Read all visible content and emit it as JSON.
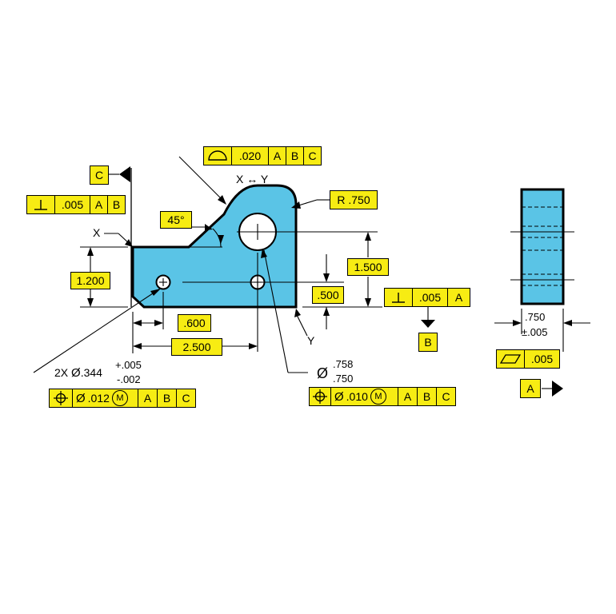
{
  "datum_labels": {
    "A": "A",
    "B": "B",
    "C": "C",
    "X": "X",
    "Y": "Y"
  },
  "fcf_profile": {
    "tolerance": ".020",
    "refs": [
      "A",
      "B",
      "C"
    ]
  },
  "fcf_perp_top": {
    "tolerance": ".005",
    "refs": [
      "A",
      "B"
    ]
  },
  "fcf_perp_right": {
    "tolerance": ".005",
    "refs": [
      "A"
    ]
  },
  "fcf_pos_left": {
    "diameter": "Ø",
    "tolerance": ".012",
    "modifier": "M",
    "refs": [
      "A",
      "B",
      "C"
    ]
  },
  "fcf_pos_right": {
    "diameter": "Ø",
    "tolerance": ".010",
    "modifier": "M",
    "refs": [
      "A",
      "B",
      "C"
    ]
  },
  "fcf_flat": {
    "tolerance": ".005"
  },
  "between": {
    "from": "X",
    "arrow": "↔",
    "to": "Y"
  },
  "dims": {
    "angle": "45°",
    "radius": "R .750",
    "height_left": "1.200",
    "height_right": "1.500",
    "offset_small": ".500",
    "hole_x1": ".600",
    "hole_x2": "2.500",
    "thickness": ".750",
    "thickness_tol": "±.005"
  },
  "hole_callout": {
    "count": "2X",
    "diameter_symbol": "Ø",
    "size": ".344",
    "tol_plus": "+.005",
    "tol_minus": "-.002"
  },
  "bore_callout": {
    "diameter_symbol": "Ø",
    "upper": ".758",
    "lower": ".750"
  },
  "colors": {
    "part": "#5ac4e6",
    "frame": "#f7ec13"
  }
}
